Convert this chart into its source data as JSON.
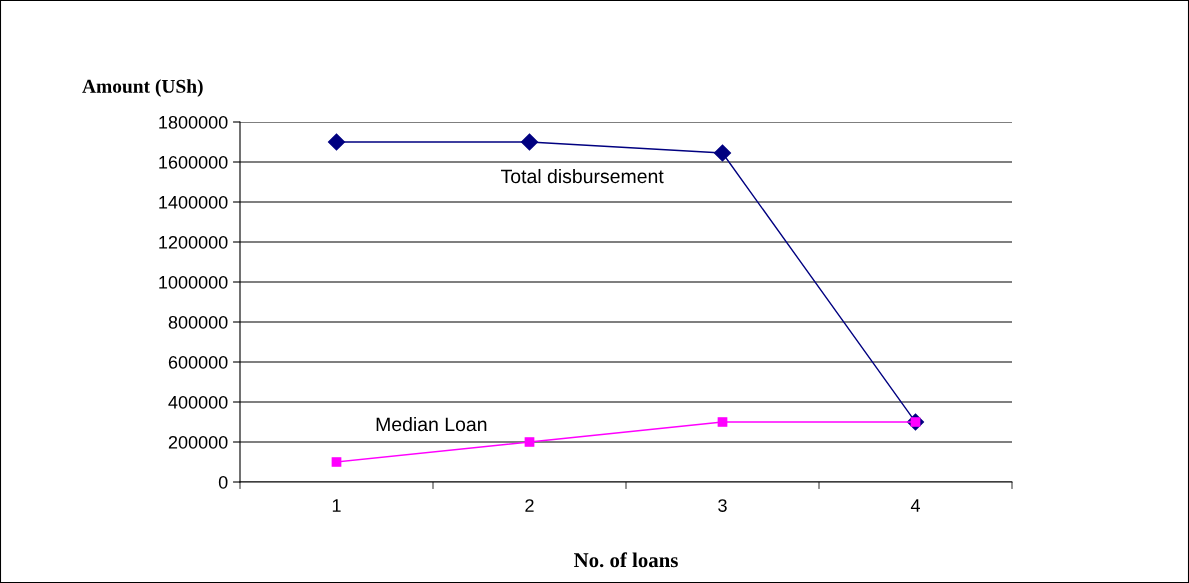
{
  "chart_data": {
    "type": "line",
    "xlabel": "No. of loans",
    "ylabel": "Amount (USh)",
    "categories": [
      "1",
      "2",
      "3",
      "4"
    ],
    "series": [
      {
        "name": "Total disbursement",
        "color": "#000080",
        "marker": "diamond",
        "values": [
          1700000,
          1700000,
          1645000,
          300000
        ]
      },
      {
        "name": "Median Loan",
        "color": "#ff00ff",
        "marker": "square",
        "values": [
          100000,
          200000,
          300000,
          300000
        ]
      }
    ],
    "ylim": [
      0,
      1800000
    ],
    "yticks": [
      0,
      200000,
      400000,
      600000,
      800000,
      1000000,
      1200000,
      1400000,
      1600000,
      1800000
    ],
    "grid": "y",
    "line_style": "solid"
  }
}
